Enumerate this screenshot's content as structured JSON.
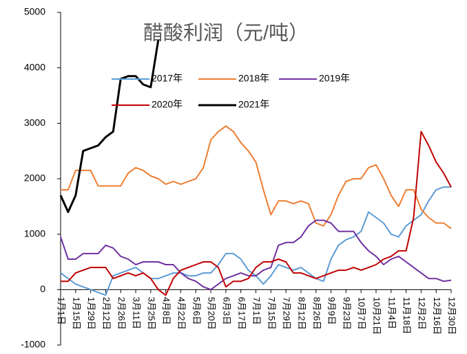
{
  "chart_data": {
    "type": "line",
    "title": "醋酸利润（元/吨）",
    "categories": [
      "1月1日",
      null,
      "1月15日",
      null,
      "1月29日",
      null,
      "2月12日",
      null,
      "2月26日",
      null,
      "3月11日",
      null,
      "3月25日",
      null,
      "4月8日",
      null,
      "4月22日",
      null,
      "5月6日",
      null,
      "5月20日",
      null,
      "6月3日",
      null,
      "6月17日",
      null,
      "7月1日",
      null,
      "7月15日",
      null,
      "7月29日",
      null,
      "8月12日",
      null,
      "8月26日",
      null,
      "9月9日",
      null,
      "9月23日",
      null,
      "10月7日",
      null,
      "10月21日",
      null,
      "11月4日",
      null,
      "11月18日",
      null,
      "12月2日",
      null,
      "12月16日",
      null,
      "12月30日"
    ],
    "series": [
      {
        "name": "2017年",
        "color": "#5b9bd5",
        "values": [
          300,
          200,
          100,
          50,
          0,
          -50,
          -100,
          250,
          300,
          350,
          400,
          300,
          200,
          200,
          250,
          300,
          300,
          250,
          250,
          300,
          300,
          450,
          650,
          650,
          550,
          350,
          250,
          100,
          250,
          450,
          400,
          350,
          400,
          300,
          200,
          150,
          550,
          800,
          900,
          950,
          1050,
          1400,
          1300,
          1200,
          1000,
          950,
          1150,
          1250,
          1350,
          1600,
          1800,
          1850,
          1850
        ]
      },
      {
        "name": "2018年",
        "color": "#ed7d31",
        "values": [
          1800,
          1800,
          2150,
          2150,
          2150,
          1870,
          1870,
          1870,
          1870,
          2100,
          2200,
          2150,
          2050,
          2000,
          1900,
          1950,
          1900,
          1950,
          2000,
          2200,
          2700,
          2850,
          2950,
          2850,
          2650,
          2500,
          2300,
          1800,
          1350,
          1600,
          1600,
          1550,
          1600,
          1550,
          1200,
          1150,
          1350,
          1700,
          1950,
          2000,
          2000,
          2200,
          2250,
          2000,
          1700,
          1500,
          1800,
          1800,
          1450,
          1300,
          1200,
          1200,
          1100
        ]
      },
      {
        "name": "2019年",
        "color": "#7030a0",
        "values": [
          950,
          550,
          550,
          650,
          650,
          650,
          800,
          750,
          600,
          550,
          450,
          500,
          500,
          500,
          450,
          450,
          300,
          200,
          150,
          50,
          0,
          100,
          200,
          250,
          300,
          250,
          250,
          350,
          400,
          800,
          850,
          850,
          950,
          1150,
          1250,
          1250,
          1200,
          1050,
          1050,
          1050,
          850,
          700,
          600,
          450,
          550,
          600,
          500,
          400,
          300,
          200,
          200,
          150,
          170
        ]
      },
      {
        "name": "2020年",
        "color": "#c00000",
        "values": [
          150,
          150,
          300,
          350,
          400,
          400,
          400,
          200,
          250,
          300,
          250,
          300,
          200,
          0,
          -100,
          200,
          350,
          400,
          450,
          500,
          500,
          400,
          50,
          150,
          150,
          200,
          400,
          500,
          500,
          550,
          500,
          300,
          300,
          250,
          200,
          250,
          300,
          350,
          350,
          400,
          350,
          400,
          450,
          550,
          600,
          700,
          700,
          1300,
          2850,
          2600,
          2300,
          2100,
          1850
        ]
      },
      {
        "name": "2021年",
        "color": "#000000",
        "values": [
          1700,
          1400,
          1700,
          2500,
          2550,
          2600,
          2750,
          2850,
          3800,
          3850,
          3850,
          3700,
          3650,
          4500,
          null,
          null,
          null,
          null,
          null,
          null,
          null,
          null,
          null,
          null,
          null,
          null,
          null,
          null,
          null,
          null,
          null,
          null,
          null,
          null,
          null,
          null,
          null,
          null,
          null,
          null,
          null,
          null,
          null,
          null,
          null,
          null,
          null,
          null,
          null,
          null,
          null,
          null,
          null
        ]
      }
    ],
    "ylim": [
      -1000,
      5000
    ],
    "yticks": [
      -1000,
      0,
      1000,
      2000,
      3000,
      4000,
      5000
    ]
  }
}
